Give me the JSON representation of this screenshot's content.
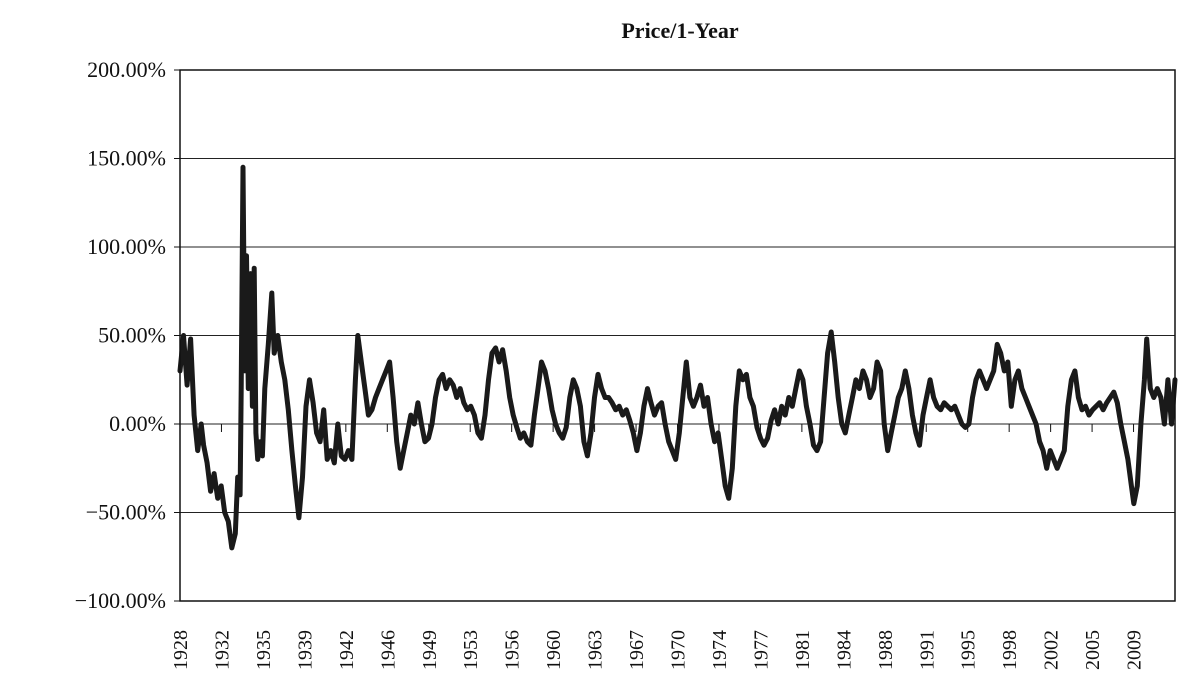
{
  "chart_data": {
    "type": "line",
    "title": "Price/1-Year",
    "xlabel": "",
    "ylabel": "",
    "ylim": [
      -1.0,
      2.0
    ],
    "xlim": [
      1928,
      2012.5
    ],
    "grid": "horizontal",
    "legend": "none",
    "y_ticks": [
      {
        "value": 2.0,
        "label": "200.00%"
      },
      {
        "value": 1.5,
        "label": "150.00%"
      },
      {
        "value": 1.0,
        "label": "100.00%"
      },
      {
        "value": 0.5,
        "label": "50.00%"
      },
      {
        "value": 0.0,
        "label": "0.00%"
      },
      {
        "value": -0.5,
        "label": "−50.00%"
      },
      {
        "value": -1.0,
        "label": "−100.00%"
      }
    ],
    "x_ticks": [
      "1928",
      "1932",
      "1935",
      "1939",
      "1942",
      "1946",
      "1949",
      "1953",
      "1956",
      "1960",
      "1963",
      "1967",
      "1970",
      "1974",
      "1977",
      "1981",
      "1984",
      "1988",
      "1991",
      "1995",
      "1998",
      "2002",
      "2005",
      "2009"
    ],
    "series": [
      {
        "color": "#1a1a1a",
        "points": [
          [
            1928.0,
            0.3
          ],
          [
            1928.3,
            0.5
          ],
          [
            1928.6,
            0.22
          ],
          [
            1928.9,
            0.48
          ],
          [
            1929.2,
            0.05
          ],
          [
            1929.5,
            -0.15
          ],
          [
            1929.8,
            0.0
          ],
          [
            1930.0,
            -0.12
          ],
          [
            1930.3,
            -0.22
          ],
          [
            1930.6,
            -0.38
          ],
          [
            1930.9,
            -0.28
          ],
          [
            1931.2,
            -0.42
          ],
          [
            1931.5,
            -0.35
          ],
          [
            1931.8,
            -0.5
          ],
          [
            1932.1,
            -0.55
          ],
          [
            1932.4,
            -0.7
          ],
          [
            1932.7,
            -0.62
          ],
          [
            1932.9,
            -0.3
          ],
          [
            1933.1,
            -0.4
          ],
          [
            1933.2,
            0.2
          ],
          [
            1933.35,
            1.45
          ],
          [
            1933.5,
            0.3
          ],
          [
            1933.65,
            0.95
          ],
          [
            1933.8,
            0.2
          ],
          [
            1934.0,
            0.85
          ],
          [
            1934.15,
            0.1
          ],
          [
            1934.3,
            0.88
          ],
          [
            1934.45,
            -0.05
          ],
          [
            1934.6,
            -0.2
          ],
          [
            1934.8,
            -0.1
          ],
          [
            1935.0,
            -0.18
          ],
          [
            1935.2,
            0.2
          ],
          [
            1935.5,
            0.45
          ],
          [
            1935.8,
            0.74
          ],
          [
            1936.0,
            0.4
          ],
          [
            1936.3,
            0.5
          ],
          [
            1936.6,
            0.35
          ],
          [
            1936.9,
            0.25
          ],
          [
            1937.2,
            0.08
          ],
          [
            1937.5,
            -0.15
          ],
          [
            1937.8,
            -0.35
          ],
          [
            1938.1,
            -0.53
          ],
          [
            1938.4,
            -0.3
          ],
          [
            1938.7,
            0.1
          ],
          [
            1939.0,
            0.25
          ],
          [
            1939.3,
            0.12
          ],
          [
            1939.6,
            -0.05
          ],
          [
            1939.9,
            -0.1
          ],
          [
            1940.2,
            0.08
          ],
          [
            1940.5,
            -0.2
          ],
          [
            1940.8,
            -0.15
          ],
          [
            1941.1,
            -0.22
          ],
          [
            1941.4,
            0.0
          ],
          [
            1941.7,
            -0.18
          ],
          [
            1942.0,
            -0.2
          ],
          [
            1942.3,
            -0.15
          ],
          [
            1942.6,
            -0.2
          ],
          [
            1942.9,
            0.25
          ],
          [
            1943.1,
            0.5
          ],
          [
            1943.4,
            0.35
          ],
          [
            1943.7,
            0.2
          ],
          [
            1944.0,
            0.05
          ],
          [
            1944.3,
            0.08
          ],
          [
            1944.6,
            0.15
          ],
          [
            1944.9,
            0.2
          ],
          [
            1945.2,
            0.25
          ],
          [
            1945.5,
            0.3
          ],
          [
            1945.8,
            0.35
          ],
          [
            1946.1,
            0.15
          ],
          [
            1946.4,
            -0.1
          ],
          [
            1946.7,
            -0.25
          ],
          [
            1947.0,
            -0.15
          ],
          [
            1947.3,
            -0.05
          ],
          [
            1947.6,
            0.05
          ],
          [
            1947.9,
            0.0
          ],
          [
            1948.2,
            0.12
          ],
          [
            1948.5,
            0.0
          ],
          [
            1948.8,
            -0.1
          ],
          [
            1949.1,
            -0.08
          ],
          [
            1949.4,
            0.0
          ],
          [
            1949.7,
            0.15
          ],
          [
            1950.0,
            0.25
          ],
          [
            1950.3,
            0.28
          ],
          [
            1950.6,
            0.2
          ],
          [
            1950.9,
            0.25
          ],
          [
            1951.2,
            0.22
          ],
          [
            1951.5,
            0.15
          ],
          [
            1951.8,
            0.2
          ],
          [
            1952.1,
            0.12
          ],
          [
            1952.4,
            0.08
          ],
          [
            1952.7,
            0.1
          ],
          [
            1953.0,
            0.05
          ],
          [
            1953.3,
            -0.05
          ],
          [
            1953.6,
            -0.08
          ],
          [
            1953.9,
            0.05
          ],
          [
            1954.2,
            0.25
          ],
          [
            1954.5,
            0.4
          ],
          [
            1954.8,
            0.43
          ],
          [
            1955.1,
            0.35
          ],
          [
            1955.4,
            0.42
          ],
          [
            1955.7,
            0.3
          ],
          [
            1956.0,
            0.15
          ],
          [
            1956.3,
            0.05
          ],
          [
            1956.6,
            -0.02
          ],
          [
            1956.9,
            -0.08
          ],
          [
            1957.2,
            -0.05
          ],
          [
            1957.5,
            -0.1
          ],
          [
            1957.8,
            -0.12
          ],
          [
            1958.1,
            0.05
          ],
          [
            1958.4,
            0.2
          ],
          [
            1958.7,
            0.35
          ],
          [
            1959.0,
            0.3
          ],
          [
            1959.3,
            0.2
          ],
          [
            1959.6,
            0.08
          ],
          [
            1959.9,
            0.0
          ],
          [
            1960.2,
            -0.05
          ],
          [
            1960.5,
            -0.08
          ],
          [
            1960.8,
            -0.02
          ],
          [
            1961.1,
            0.15
          ],
          [
            1961.4,
            0.25
          ],
          [
            1961.7,
            0.2
          ],
          [
            1962.0,
            0.1
          ],
          [
            1962.3,
            -0.1
          ],
          [
            1962.6,
            -0.18
          ],
          [
            1962.9,
            -0.05
          ],
          [
            1963.2,
            0.15
          ],
          [
            1963.5,
            0.28
          ],
          [
            1963.8,
            0.2
          ],
          [
            1964.1,
            0.15
          ],
          [
            1964.4,
            0.15
          ],
          [
            1964.7,
            0.12
          ],
          [
            1965.0,
            0.08
          ],
          [
            1965.3,
            0.1
          ],
          [
            1965.6,
            0.05
          ],
          [
            1965.9,
            0.08
          ],
          [
            1966.2,
            0.02
          ],
          [
            1966.5,
            -0.05
          ],
          [
            1966.8,
            -0.15
          ],
          [
            1967.1,
            -0.05
          ],
          [
            1967.4,
            0.1
          ],
          [
            1967.7,
            0.2
          ],
          [
            1968.0,
            0.12
          ],
          [
            1968.3,
            0.05
          ],
          [
            1968.6,
            0.1
          ],
          [
            1968.9,
            0.12
          ],
          [
            1969.2,
            0.0
          ],
          [
            1969.5,
            -0.1
          ],
          [
            1969.8,
            -0.15
          ],
          [
            1970.1,
            -0.2
          ],
          [
            1970.4,
            -0.05
          ],
          [
            1970.7,
            0.15
          ],
          [
            1971.0,
            0.35
          ],
          [
            1971.3,
            0.15
          ],
          [
            1971.6,
            0.1
          ],
          [
            1971.9,
            0.15
          ],
          [
            1972.2,
            0.22
          ],
          [
            1972.5,
            0.1
          ],
          [
            1972.8,
            0.15
          ],
          [
            1973.1,
            0.0
          ],
          [
            1973.4,
            -0.1
          ],
          [
            1973.7,
            -0.05
          ],
          [
            1974.0,
            -0.2
          ],
          [
            1974.3,
            -0.35
          ],
          [
            1974.6,
            -0.42
          ],
          [
            1974.9,
            -0.25
          ],
          [
            1975.2,
            0.1
          ],
          [
            1975.5,
            0.3
          ],
          [
            1975.8,
            0.25
          ],
          [
            1976.1,
            0.28
          ],
          [
            1976.4,
            0.15
          ],
          [
            1976.7,
            0.1
          ],
          [
            1977.0,
            -0.02
          ],
          [
            1977.3,
            -0.08
          ],
          [
            1977.6,
            -0.12
          ],
          [
            1977.9,
            -0.08
          ],
          [
            1978.2,
            0.02
          ],
          [
            1978.5,
            0.08
          ],
          [
            1978.8,
            0.0
          ],
          [
            1979.1,
            0.1
          ],
          [
            1979.4,
            0.05
          ],
          [
            1979.7,
            0.15
          ],
          [
            1980.0,
            0.1
          ],
          [
            1980.3,
            0.2
          ],
          [
            1980.6,
            0.3
          ],
          [
            1980.9,
            0.25
          ],
          [
            1981.2,
            0.1
          ],
          [
            1981.5,
            0.0
          ],
          [
            1981.8,
            -0.12
          ],
          [
            1982.1,
            -0.15
          ],
          [
            1982.4,
            -0.1
          ],
          [
            1982.7,
            0.15
          ],
          [
            1983.0,
            0.4
          ],
          [
            1983.3,
            0.52
          ],
          [
            1983.6,
            0.35
          ],
          [
            1983.9,
            0.15
          ],
          [
            1984.2,
            0.0
          ],
          [
            1984.5,
            -0.05
          ],
          [
            1984.8,
            0.05
          ],
          [
            1985.1,
            0.15
          ],
          [
            1985.4,
            0.25
          ],
          [
            1985.7,
            0.2
          ],
          [
            1986.0,
            0.3
          ],
          [
            1986.3,
            0.25
          ],
          [
            1986.6,
            0.15
          ],
          [
            1986.9,
            0.2
          ],
          [
            1987.2,
            0.35
          ],
          [
            1987.5,
            0.3
          ],
          [
            1987.8,
            0.0
          ],
          [
            1988.1,
            -0.15
          ],
          [
            1988.4,
            -0.05
          ],
          [
            1988.7,
            0.05
          ],
          [
            1989.0,
            0.15
          ],
          [
            1989.3,
            0.2
          ],
          [
            1989.6,
            0.3
          ],
          [
            1989.9,
            0.2
          ],
          [
            1990.2,
            0.05
          ],
          [
            1990.5,
            -0.05
          ],
          [
            1990.8,
            -0.12
          ],
          [
            1991.1,
            0.05
          ],
          [
            1991.4,
            0.15
          ],
          [
            1991.7,
            0.25
          ],
          [
            1992.0,
            0.15
          ],
          [
            1992.3,
            0.1
          ],
          [
            1992.6,
            0.08
          ],
          [
            1992.9,
            0.12
          ],
          [
            1993.2,
            0.1
          ],
          [
            1993.5,
            0.08
          ],
          [
            1993.8,
            0.1
          ],
          [
            1994.1,
            0.05
          ],
          [
            1994.4,
            0.0
          ],
          [
            1994.7,
            -0.02
          ],
          [
            1995.0,
            0.0
          ],
          [
            1995.3,
            0.15
          ],
          [
            1995.6,
            0.25
          ],
          [
            1995.9,
            0.3
          ],
          [
            1996.2,
            0.25
          ],
          [
            1996.5,
            0.2
          ],
          [
            1996.8,
            0.25
          ],
          [
            1997.1,
            0.3
          ],
          [
            1997.4,
            0.45
          ],
          [
            1997.7,
            0.4
          ],
          [
            1998.0,
            0.3
          ],
          [
            1998.3,
            0.35
          ],
          [
            1998.6,
            0.1
          ],
          [
            1998.9,
            0.25
          ],
          [
            1999.2,
            0.3
          ],
          [
            1999.5,
            0.2
          ],
          [
            1999.8,
            0.15
          ],
          [
            2000.1,
            0.1
          ],
          [
            2000.4,
            0.05
          ],
          [
            2000.7,
            0.0
          ],
          [
            2001.0,
            -0.1
          ],
          [
            2001.3,
            -0.15
          ],
          [
            2001.6,
            -0.25
          ],
          [
            2001.9,
            -0.15
          ],
          [
            2002.2,
            -0.2
          ],
          [
            2002.5,
            -0.25
          ],
          [
            2002.8,
            -0.2
          ],
          [
            2003.1,
            -0.15
          ],
          [
            2003.4,
            0.1
          ],
          [
            2003.7,
            0.25
          ],
          [
            2004.0,
            0.3
          ],
          [
            2004.3,
            0.15
          ],
          [
            2004.6,
            0.08
          ],
          [
            2004.9,
            0.1
          ],
          [
            2005.2,
            0.05
          ],
          [
            2005.5,
            0.08
          ],
          [
            2005.8,
            0.1
          ],
          [
            2006.1,
            0.12
          ],
          [
            2006.4,
            0.08
          ],
          [
            2006.7,
            0.12
          ],
          [
            2007.0,
            0.15
          ],
          [
            2007.3,
            0.18
          ],
          [
            2007.6,
            0.12
          ],
          [
            2007.9,
            0.0
          ],
          [
            2008.2,
            -0.1
          ],
          [
            2008.5,
            -0.2
          ],
          [
            2008.8,
            -0.35
          ],
          [
            2009.0,
            -0.45
          ],
          [
            2009.3,
            -0.35
          ],
          [
            2009.6,
            0.0
          ],
          [
            2009.9,
            0.25
          ],
          [
            2010.1,
            0.48
          ],
          [
            2010.4,
            0.2
          ],
          [
            2010.7,
            0.15
          ],
          [
            2011.0,
            0.2
          ],
          [
            2011.3,
            0.15
          ],
          [
            2011.6,
            0.0
          ],
          [
            2011.9,
            0.25
          ],
          [
            2012.2,
            0.0
          ],
          [
            2012.5,
            0.25
          ]
        ]
      }
    ]
  }
}
